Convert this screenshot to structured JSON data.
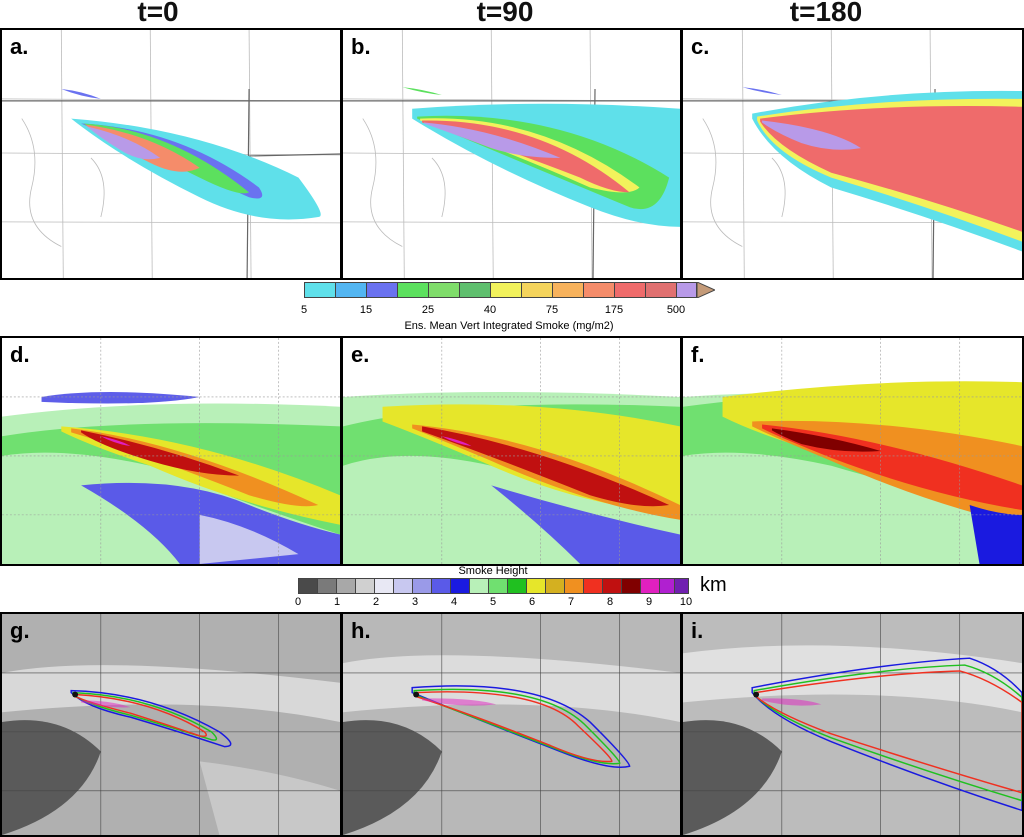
{
  "columns": [
    "t=0",
    "t=90",
    "t=180"
  ],
  "panel_labels": [
    "a.",
    "b.",
    "c.",
    "d.",
    "e.",
    "f.",
    "g.",
    "h.",
    "i."
  ],
  "colorbar_smoke": {
    "title": "Ens. Mean Vert Integrated Smoke (mg/m2)",
    "ticks": [
      "5",
      "15",
      "25",
      "40",
      "75",
      "175",
      "500"
    ],
    "colors": [
      "#5fe0ea",
      "#53b6f2",
      "#6a72f0",
      "#5ce05e",
      "#7fdc6a",
      "#5fbf6e",
      "#f2f25c",
      "#f5d45c",
      "#f7b25c",
      "#f58c6a",
      "#ef6b6b",
      "#e07070",
      "#b89ae8",
      "#c49a78"
    ]
  },
  "colorbar_height": {
    "title": "Smoke Height",
    "ticks": [
      "0",
      "1",
      "2",
      "3",
      "4",
      "5",
      "6",
      "7",
      "8",
      "9",
      "10"
    ],
    "unit": "km",
    "colors": [
      "#4a4a4a",
      "#7a7a7a",
      "#a8a8a8",
      "#d0d0d0",
      "#e8e8f4",
      "#c8c8f0",
      "#9a9ae8",
      "#5a5ae8",
      "#1a1ae0",
      "#b8f0b8",
      "#70e070",
      "#20c020",
      "#e6e62a",
      "#d4b020",
      "#f09020",
      "#f03020",
      "#c01010",
      "#800000",
      "#e020c0",
      "#b020d0",
      "#7020b0"
    ]
  }
}
